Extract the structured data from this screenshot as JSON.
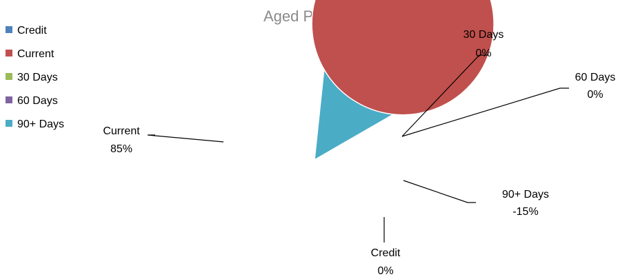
{
  "chart_data": {
    "type": "pie",
    "title": "Aged Payables",
    "legend_position": "left",
    "series": [
      {
        "name": "Credit",
        "value": 0,
        "label_percent": "0%",
        "color": "#4f81bd"
      },
      {
        "name": "Current",
        "value": 85,
        "label_percent": "85%",
        "color": "#c0504d"
      },
      {
        "name": "30 Days",
        "value": 0,
        "label_percent": "0%",
        "color": "#9bbb59"
      },
      {
        "name": "60 Days",
        "value": 0,
        "label_percent": "0%",
        "color": "#8064a2"
      },
      {
        "name": "90+ Days",
        "value": -15,
        "label_percent": "-15%",
        "color": "#4bacc6"
      }
    ]
  }
}
